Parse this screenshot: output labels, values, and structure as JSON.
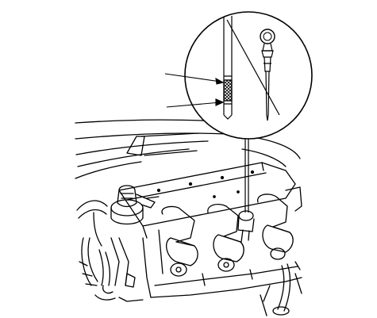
{
  "diagram": {
    "labels": []
  },
  "colors": {
    "ink": "#000000",
    "paper": "#ffffff",
    "hatch": "#555555"
  }
}
